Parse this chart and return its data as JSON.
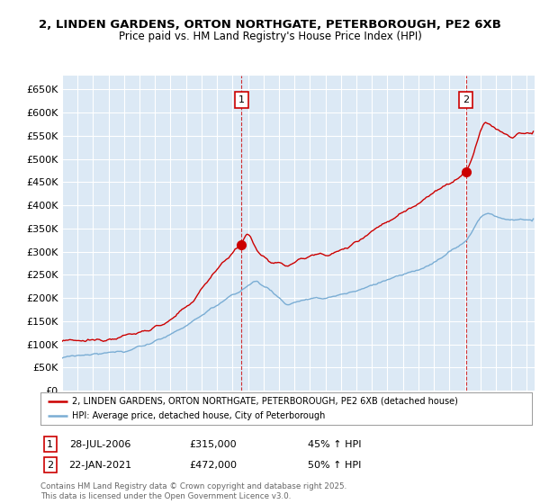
{
  "title_line1": "2, LINDEN GARDENS, ORTON NORTHGATE, PETERBOROUGH, PE2 6XB",
  "title_line2": "Price paid vs. HM Land Registry's House Price Index (HPI)",
  "bg_color": "#dce9f5",
  "fig_bg_color": "#ffffff",
  "red_color": "#cc0000",
  "blue_color": "#7aadd4",
  "ylim": [
    0,
    680000
  ],
  "yticks": [
    0,
    50000,
    100000,
    150000,
    200000,
    250000,
    300000,
    350000,
    400000,
    450000,
    500000,
    550000,
    600000,
    650000
  ],
  "ytick_labels": [
    "£0",
    "£50K",
    "£100K",
    "£150K",
    "£200K",
    "£250K",
    "£300K",
    "£350K",
    "£400K",
    "£450K",
    "£500K",
    "£550K",
    "£600K",
    "£650K"
  ],
  "sale1_date": "28-JUL-2006",
  "sale1_price": 315000,
  "sale1_pct": "45% ↑ HPI",
  "sale1_x": 2006.57,
  "sale2_date": "22-JAN-2021",
  "sale2_price": 472000,
  "sale2_pct": "50% ↑ HPI",
  "sale2_x": 2021.06,
  "legend_red": "2, LINDEN GARDENS, ORTON NORTHGATE, PETERBOROUGH, PE2 6XB (detached house)",
  "legend_blue": "HPI: Average price, detached house, City of Peterborough",
  "footnote": "Contains HM Land Registry data © Crown copyright and database right 2025.\nThis data is licensed under the Open Government Licence v3.0."
}
